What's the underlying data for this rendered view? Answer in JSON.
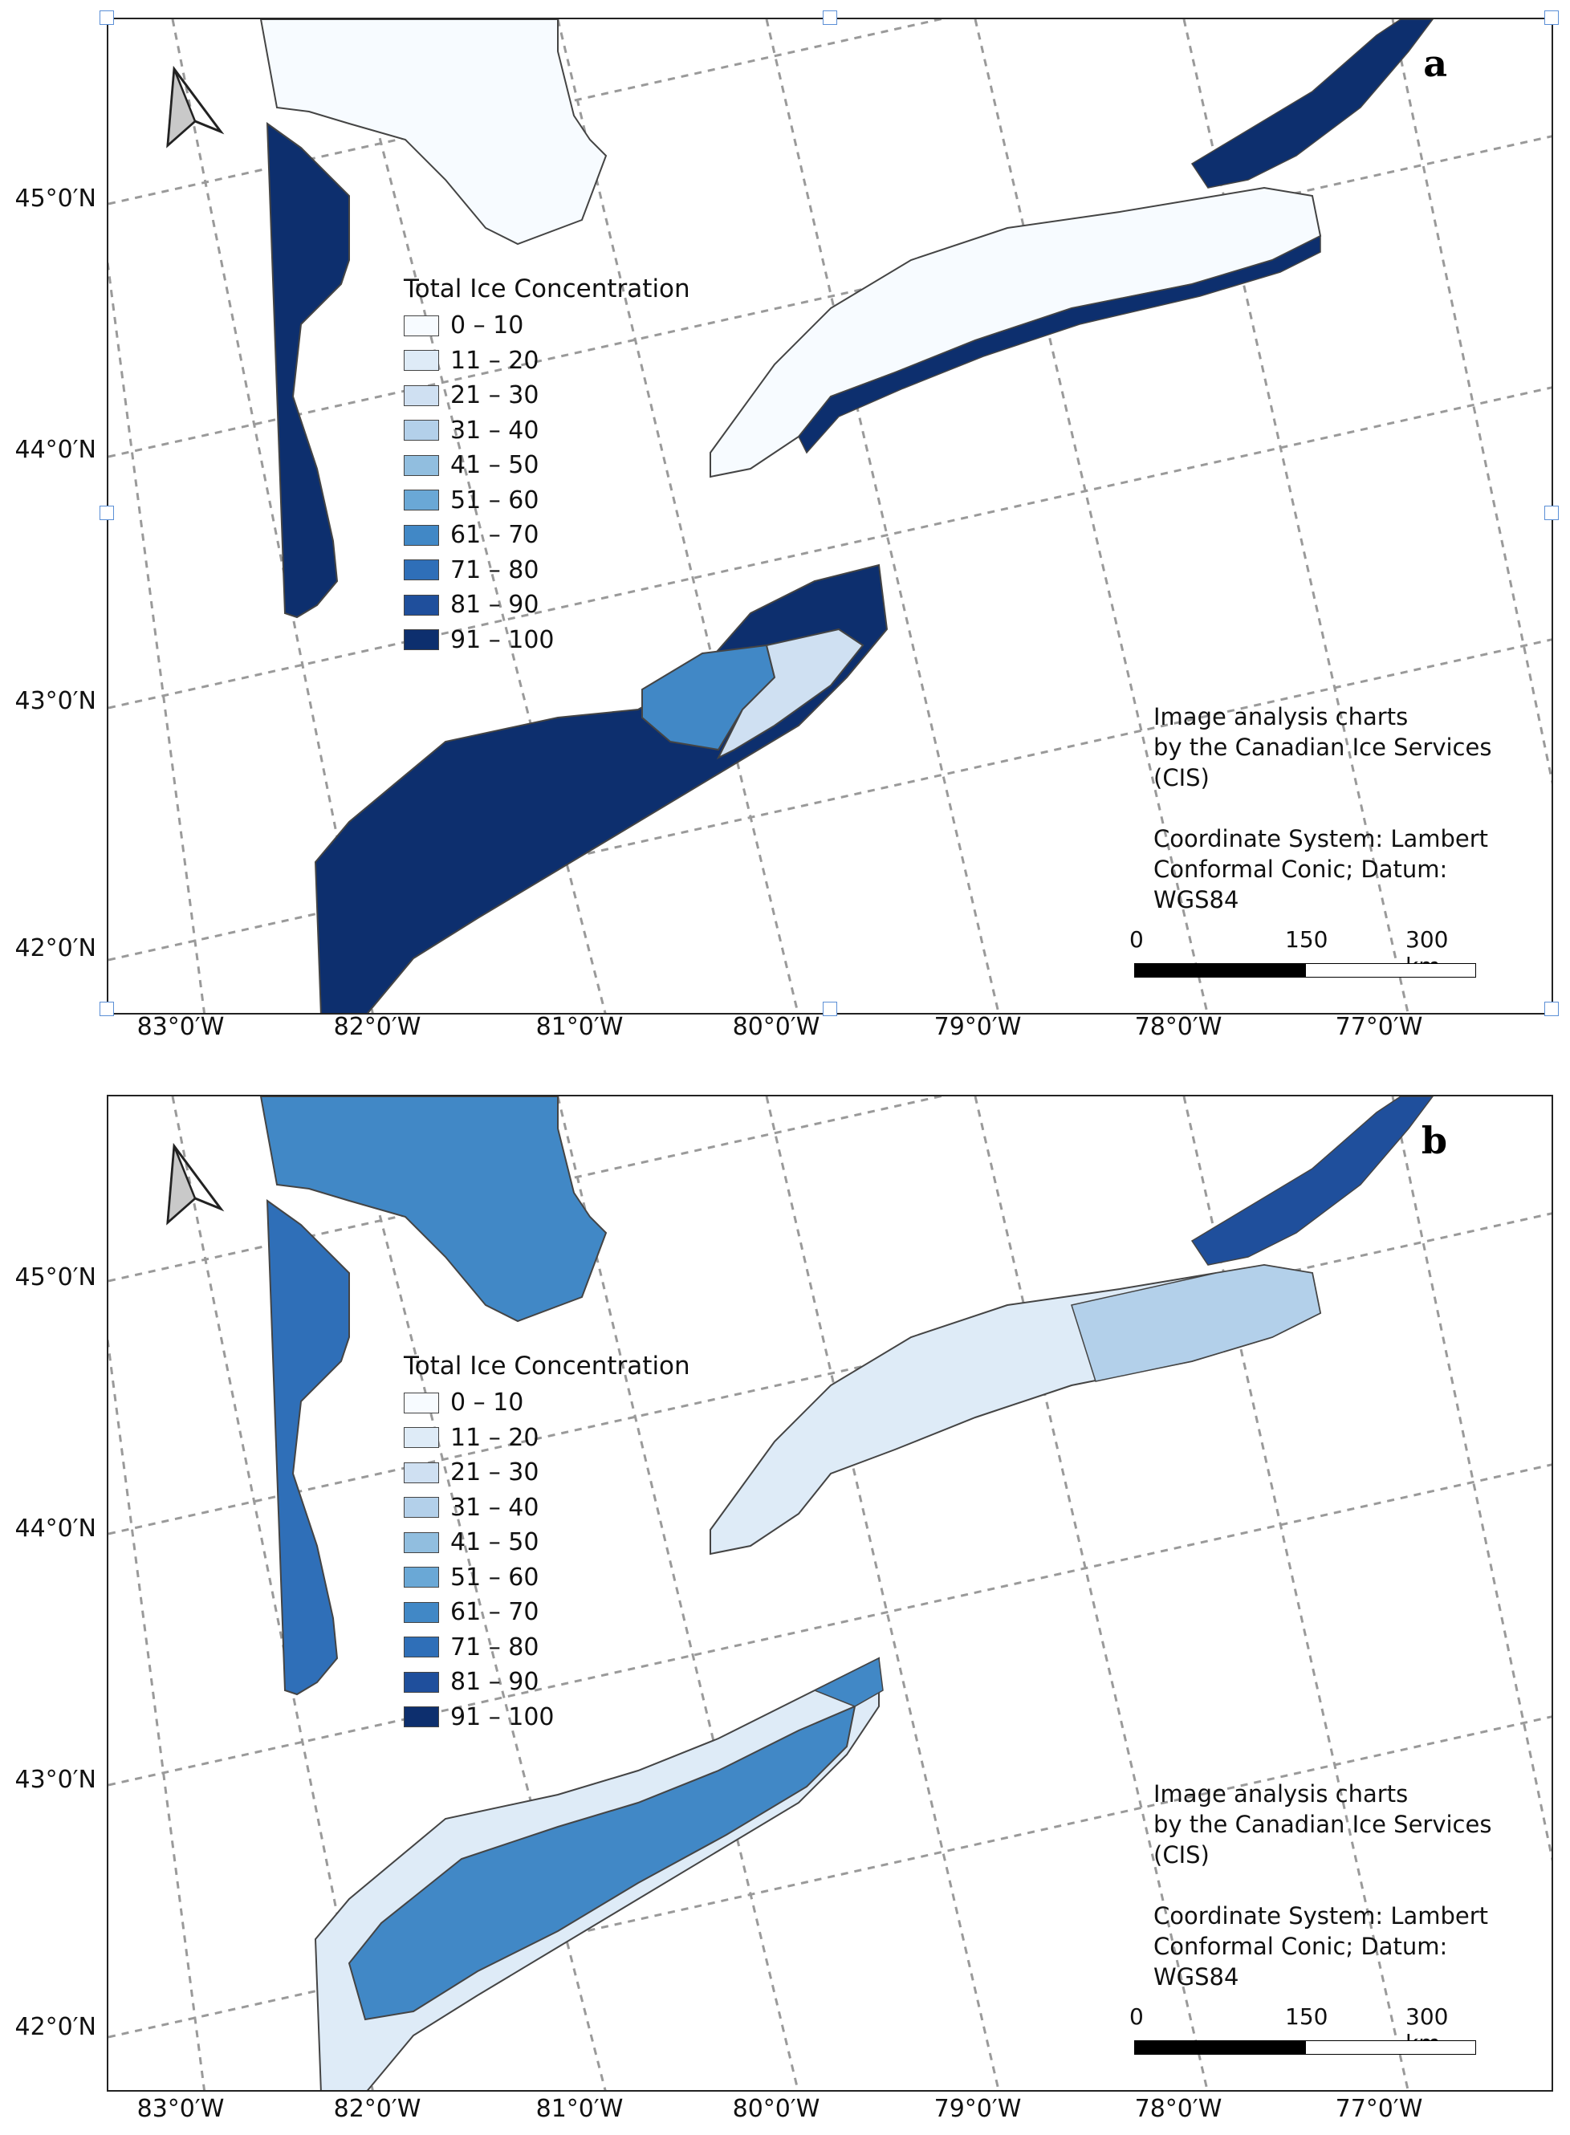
{
  "legend": {
    "title": "Total Ice Concentration",
    "classes": [
      {
        "label": "0 – 10",
        "color": "#f7fbff"
      },
      {
        "label": "11 – 20",
        "color": "#deebf7"
      },
      {
        "label": "21 – 30",
        "color": "#cfe0f2"
      },
      {
        "label": "31 – 40",
        "color": "#b3d0ea"
      },
      {
        "label": "41 – 50",
        "color": "#91bedf"
      },
      {
        "label": "51 – 60",
        "color": "#6aa8d6"
      },
      {
        "label": "61 – 70",
        "color": "#4188c6"
      },
      {
        "label": "71 – 80",
        "color": "#2f6fb8"
      },
      {
        "label": "81 – 90",
        "color": "#1f4f9c"
      },
      {
        "label": "91 – 100",
        "color": "#0d2f6e"
      }
    ]
  },
  "credit": {
    "line1": "Image analysis charts",
    "line2": "by the Canadian Ice Services",
    "line3": "(CIS)",
    "line4": "Coordinate System: Lambert",
    "line5": "Conformal Conic; Datum:",
    "line6": "WGS84"
  },
  "scale": {
    "label0": "0",
    "label150": "150",
    "label300": "300 km"
  },
  "latitude_labels": [
    "45°0′N",
    "44°0′N",
    "43°0′N",
    "42°0′N"
  ],
  "longitude_labels": [
    "83°0′W",
    "82°0′W",
    "81°0′W",
    "80°0′W",
    "79°0′W",
    "78°0′W",
    "77°0′W"
  ],
  "panels": {
    "a": {
      "letter": "a",
      "lake_huron_south": "#0d2f6e",
      "georgian_bay": "#f7fbff",
      "lake_erie_main": "#0d2f6e",
      "lake_erie_east": "#4188c6",
      "lake_erie_rim": "#cfe0f2",
      "lake_ontario": "#f7fbff",
      "lake_ontario_rim": "#0d2f6e",
      "st_lawrence": "#0d2f6e"
    },
    "b": {
      "letter": "b",
      "lake_huron_south": "#2f6fb8",
      "georgian_bay": "#4188c6",
      "lake_erie_main": "#4188c6",
      "lake_erie_east": "#4188c6",
      "lake_erie_rim": "#deebf7",
      "lake_ontario": "#deebf7",
      "lake_ontario_rim": "#b3d0ea",
      "st_lawrence": "#1f4f9c"
    }
  }
}
